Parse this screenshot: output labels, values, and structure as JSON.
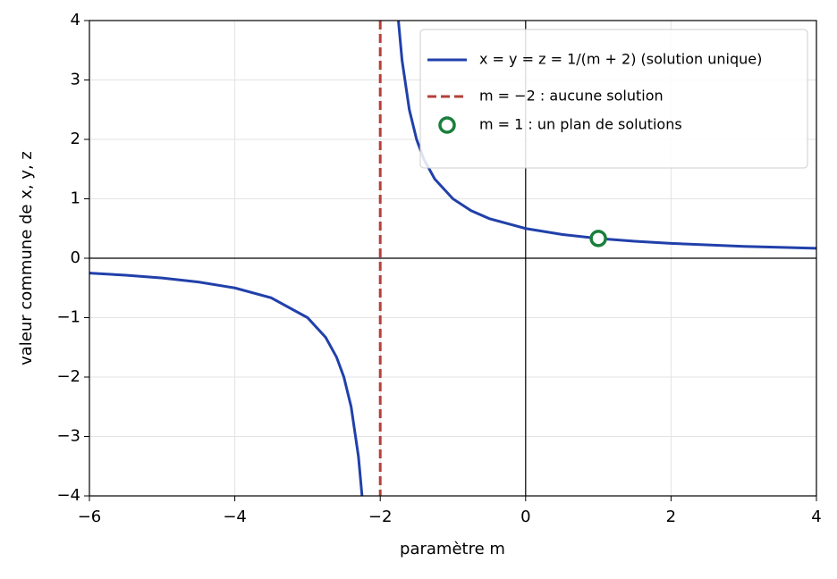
{
  "chart_data": {
    "type": "line",
    "x_label": "paramètre m",
    "y_label": "valeur commune de x, y, z",
    "xlim": [
      -6,
      4
    ],
    "ylim": [
      -4,
      4
    ],
    "xticks": [
      {
        "value": -6,
        "label": "−6"
      },
      {
        "value": -4,
        "label": "−4"
      },
      {
        "value": -2,
        "label": "−2"
      },
      0,
      2,
      4
    ],
    "yticks": [
      {
        "value": -4,
        "label": "−4"
      },
      {
        "value": -3,
        "label": "−3"
      },
      {
        "value": -2,
        "label": "−2"
      },
      {
        "value": -1,
        "label": "−1"
      },
      0,
      1,
      2,
      3,
      4
    ],
    "grid": true,
    "legend": "upper right",
    "series": [
      {
        "name": "x = y = z = 1/(m + 2) (solution unique)",
        "color": "#2140aa",
        "kind": "line",
        "x": [
          -6,
          -5.5,
          -5,
          -4.5,
          -4,
          -3.5,
          -3,
          -2.75,
          -2.6,
          -2.5,
          -2.4,
          -2.3,
          -2.25,
          -2,
          -1.75,
          -1.7,
          -1.6,
          -1.5,
          -1.4,
          -1.25,
          -1,
          -0.75,
          -0.5,
          0,
          0.5,
          1,
          1.5,
          2,
          3,
          4
        ],
        "values": [
          -0.25,
          -0.2857,
          -0.3333,
          -0.4,
          -0.5,
          -0.6667,
          -1,
          -1.3333,
          -1.6667,
          -2,
          -2.5,
          -3.3333,
          -4,
          null,
          4,
          3.3333,
          2.5,
          2,
          1.6667,
          1.3333,
          1,
          0.8,
          0.6667,
          0.5,
          0.4,
          0.3333,
          0.2857,
          0.25,
          0.2,
          0.1667
        ]
      },
      {
        "name": "m = −2 : aucune solution",
        "color": "#b5403a",
        "kind": "vline",
        "x": [
          -2
        ]
      },
      {
        "name": "m = 1 : un plan de solutions",
        "color": "#1a7f3c",
        "kind": "point",
        "x": [
          1
        ],
        "values": [
          0.3333
        ]
      }
    ]
  }
}
